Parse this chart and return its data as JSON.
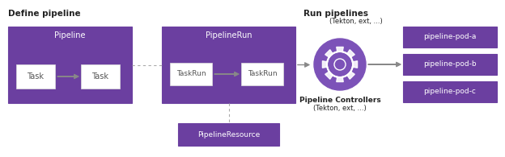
{
  "bg_color": "#ffffff",
  "purple": "#6b3fa0",
  "purple_gear_bg": "#7c52b8",
  "white": "#ffffff",
  "task_text_color": "#555555",
  "text_dark": "#222222",
  "text_white": "#ffffff",
  "arrow_gray": "#888888",
  "dashed_gray": "#aaaaaa",
  "section_left_label": "Define pipeline",
  "section_right_label": "Run pipelines",
  "pipeline_box_label": "Pipeline",
  "pipeline_run_box_label": "PipelineRun",
  "pipeline_resource_label": "PipelineResource",
  "pipeline_controllers_label": "Pipeline Controllers",
  "pipeline_controllers_sub": "(Tekton, ext, ...)",
  "task_labels": [
    "Task",
    "Task"
  ],
  "taskrun_labels": [
    "TaskRun",
    "TaskRun"
  ],
  "pod_labels": [
    "pipeline-pod-a",
    "pipeline-pod-b",
    "pipeline-pod-c"
  ],
  "figsize": [
    6.24,
    1.95
  ],
  "dpi": 100
}
